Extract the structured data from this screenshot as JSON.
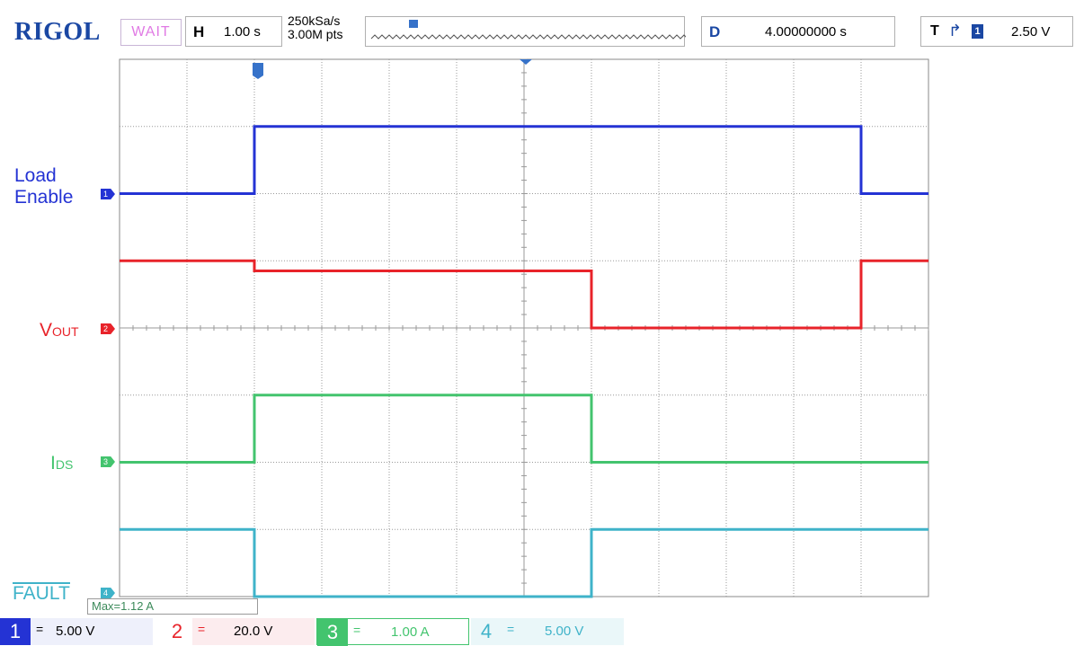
{
  "header": {
    "brand": "RIGOL",
    "run_state": "WAIT",
    "horizontal": {
      "label": "H",
      "value": "1.00 s"
    },
    "sample_rate": "250kSa/s",
    "memory_depth": "3.00M pts",
    "delay": {
      "label": "D",
      "value": "4.00000000 s"
    },
    "trigger": {
      "label": "T",
      "edge": "rising",
      "source": "1",
      "level": "2.50 V"
    }
  },
  "channels": [
    {
      "id": "1",
      "label_line1": "Load",
      "label_line2": "Enable",
      "color": "#2433d4",
      "scale": "5.00 V",
      "coupling": "="
    },
    {
      "id": "2",
      "label": "V",
      "label_sub": "OUT",
      "color": "#e8232a",
      "scale": "20.0 V",
      "coupling": "="
    },
    {
      "id": "3",
      "label": "I",
      "label_sub": "DS",
      "color": "#43c46e",
      "scale": "1.00 A",
      "coupling": "="
    },
    {
      "id": "4",
      "label": "FAULT",
      "color": "#3fb3c9",
      "scale": "5.00 V",
      "coupling": "="
    }
  ],
  "measurement": "Max=1.12 A",
  "chart_data": {
    "type": "line",
    "title": "",
    "grid": true,
    "divisions": {
      "x": 12,
      "y": 8
    },
    "x_unit": "div",
    "xlim": [
      0,
      12
    ],
    "ylim": [
      0,
      8
    ],
    "series": [
      {
        "name": "Load Enable",
        "color": "#2433d4",
        "x": [
          0,
          2,
          2,
          11,
          11,
          12
        ],
        "y": [
          6.0,
          6.0,
          7.0,
          7.0,
          6.0,
          6.0
        ]
      },
      {
        "name": "VOUT",
        "color": "#e8232a",
        "x": [
          0,
          2,
          2,
          7,
          7,
          11,
          11,
          12
        ],
        "y": [
          5.0,
          5.0,
          4.85,
          4.85,
          4.0,
          4.0,
          5.0,
          5.0
        ]
      },
      {
        "name": "IDS",
        "color": "#43c46e",
        "x": [
          0,
          2,
          2,
          7,
          7,
          12
        ],
        "y": [
          2.0,
          2.0,
          3.0,
          3.0,
          2.0,
          2.0
        ]
      },
      {
        "name": "FAULT",
        "color": "#3fb3c9",
        "x": [
          0,
          2,
          2,
          7,
          7,
          12
        ],
        "y": [
          1.0,
          1.0,
          0.0,
          0.0,
          1.0,
          1.0
        ]
      }
    ]
  }
}
